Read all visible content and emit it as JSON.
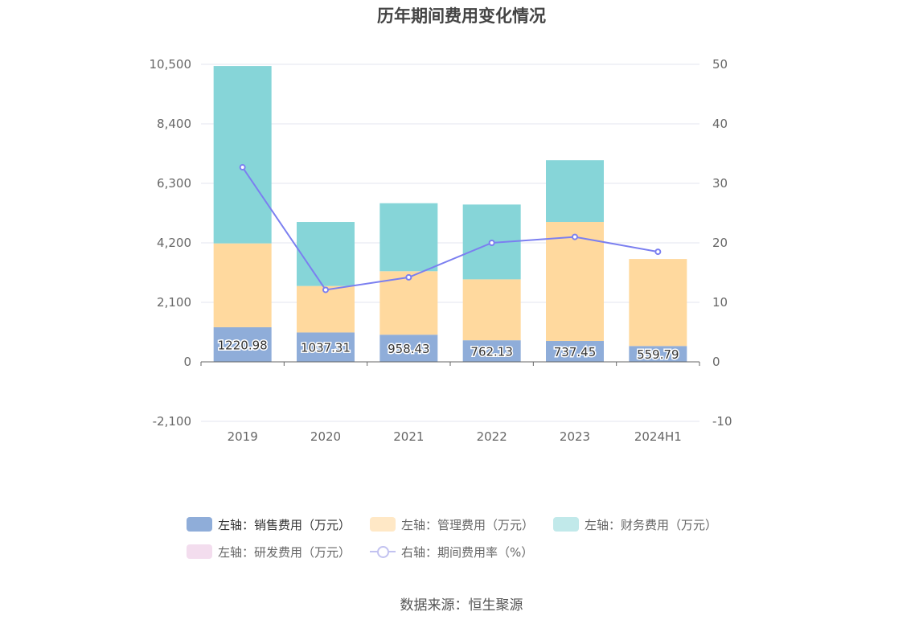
{
  "chart_data": {
    "type": "bar",
    "title": "历年期间费用变化情况",
    "categories": [
      "2019",
      "2020",
      "2021",
      "2022",
      "2023",
      "2024H1"
    ],
    "left_axis": {
      "ylim": [
        -2100,
        10500
      ],
      "ticks": [
        "-2,100",
        "0",
        "2,100",
        "4,200",
        "6,300",
        "8,400",
        "10,500"
      ],
      "tick_values": [
        -2100,
        0,
        2100,
        4200,
        6300,
        8400,
        10500
      ]
    },
    "right_axis": {
      "ylim": [
        -10,
        50
      ],
      "ticks": [
        "-10",
        "0",
        "10",
        "20",
        "30",
        "40",
        "50"
      ],
      "tick_values": [
        -10,
        0,
        10,
        20,
        30,
        40,
        50
      ]
    },
    "stacked": true,
    "series": [
      {
        "name": "左轴：销售费用（万元）",
        "axis": "left",
        "type": "bar",
        "color": "#8fadd9",
        "values": [
          1220.98,
          1037.31,
          958.43,
          762.13,
          737.45,
          559.79
        ],
        "labels": [
          "1220.98",
          "1037.31",
          "958.43",
          "762.13",
          "737.45",
          "559.79"
        ]
      },
      {
        "name": "左轴：管理费用（万元）",
        "axis": "left",
        "type": "bar",
        "color": "#ffd99e",
        "values": [
          2960,
          1640,
          2240,
          2150,
          4200,
          3070
        ]
      },
      {
        "name": "左轴：财务费用（万元）",
        "axis": "left",
        "type": "bar",
        "color": "#86d5d8",
        "values": [
          6260,
          2260,
          2400,
          2640,
          2180,
          0
        ]
      },
      {
        "name": "左轴：研发费用（万元）",
        "axis": "left",
        "type": "bar",
        "color": "#f3ddee",
        "values": [
          0,
          0,
          0,
          0,
          0,
          0
        ]
      },
      {
        "name": "右轴：期间费用率（%）",
        "axis": "right",
        "type": "line",
        "color": "#7b7ff0",
        "values": [
          32.7,
          12.1,
          14.2,
          20.0,
          21.0,
          18.5
        ]
      }
    ],
    "legend_position": "bottom",
    "grid": true
  },
  "legend": {
    "items": [
      {
        "label": "左轴：销售费用（万元）",
        "color": "#8fadd9"
      },
      {
        "label": "左轴：管理费用（万元）",
        "color": "#ffe8c6"
      },
      {
        "label": "左轴：财务费用（万元）",
        "color": "#c1e9ea"
      },
      {
        "label": "左轴：研发费用（万元）",
        "color": "#f3ddee"
      },
      {
        "label": "右轴：期间费用率（%）",
        "color": "#c2c2f0"
      }
    ]
  },
  "source": "数据来源：恒生聚源"
}
